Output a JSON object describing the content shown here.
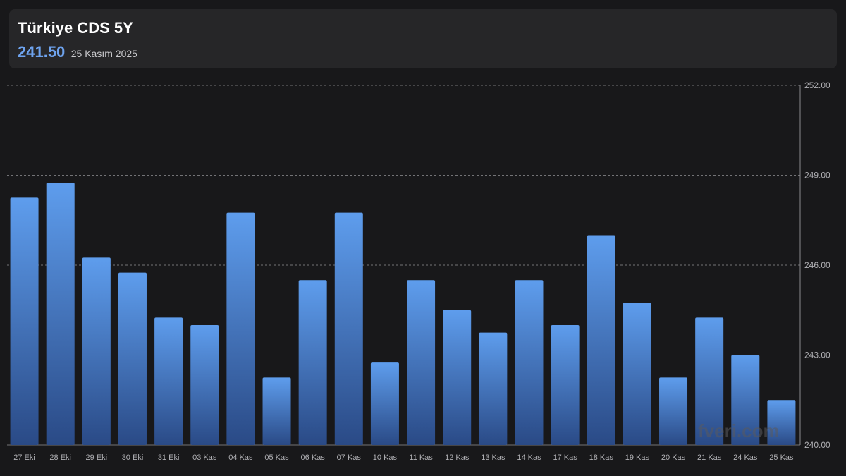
{
  "header": {
    "title": "Türkiye CDS 5Y",
    "value": "241.50",
    "date": "25 Kasım 2025"
  },
  "watermark": "fveri.com",
  "colors": {
    "bar_top": "#5e9ded",
    "bar_bottom": "#2a4a86",
    "grid": "#8a8a8e",
    "axis_text": "#b0b0b4"
  },
  "chart_data": {
    "type": "bar",
    "categories": [
      "27 Eki",
      "28 Eki",
      "29 Eki",
      "30 Eki",
      "31 Eki",
      "03 Kas",
      "04 Kas",
      "05 Kas",
      "06 Kas",
      "07 Kas",
      "10 Kas",
      "11 Kas",
      "12 Kas",
      "13 Kas",
      "14 Kas",
      "17 Kas",
      "18 Kas",
      "19 Kas",
      "20 Kas",
      "21 Kas",
      "24 Kas",
      "25 Kas"
    ],
    "values": [
      248.25,
      248.75,
      246.25,
      245.75,
      244.25,
      244.0,
      247.75,
      242.25,
      245.5,
      247.75,
      242.75,
      245.5,
      244.5,
      243.75,
      245.5,
      244.0,
      247.0,
      244.75,
      242.25,
      244.25,
      243.0,
      241.5
    ],
    "y_ticks": [
      "252.00",
      "249.00",
      "246.00",
      "243.00",
      "240.00"
    ],
    "ylim": [
      240,
      252
    ],
    "grid": true
  }
}
